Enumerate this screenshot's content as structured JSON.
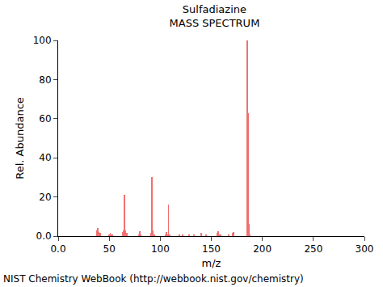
{
  "chart_data": {
    "type": "bar",
    "title": "Sulfadiazine",
    "subtitle": "MASS SPECTRUM",
    "x_label": "m/z",
    "y_label": "Rel. Abundance",
    "annotations": [
      "NIST Chemistry WebBook (http://webbook.nist.gov/chemistry)"
    ],
    "x": [
      38,
      39,
      40,
      41,
      50,
      51,
      52,
      53,
      63,
      64,
      65,
      66,
      67,
      79,
      80,
      81,
      91,
      92,
      93,
      94,
      105,
      106,
      107,
      108,
      109,
      119,
      122,
      128,
      133,
      140,
      145,
      156,
      157,
      158,
      159,
      167,
      171,
      172,
      185,
      186,
      187,
      188
    ],
    "values": [
      3,
      4,
      2,
      1.5,
      1,
      1.5,
      1,
      1,
      2,
      3,
      21,
      3,
      1.5,
      1,
      2.5,
      1,
      1.5,
      30,
      3,
      1,
      1,
      2,
      1,
      16,
      1,
      1,
      1,
      1,
      1,
      1.5,
      1,
      1.5,
      2.5,
      1,
      1,
      1,
      1.5,
      2,
      100,
      63,
      6,
      1
    ],
    "color": "#f07070",
    "xlim": [
      0,
      300
    ],
    "xticks": [
      {
        "value": 0,
        "label": "0.0"
      },
      50,
      100,
      150,
      200,
      250,
      300
    ],
    "ylim": [
      0,
      100
    ],
    "yticks": [
      {
        "value": 0,
        "label": "0.0"
      },
      20,
      40,
      60,
      80,
      100
    ],
    "grid": false
  }
}
